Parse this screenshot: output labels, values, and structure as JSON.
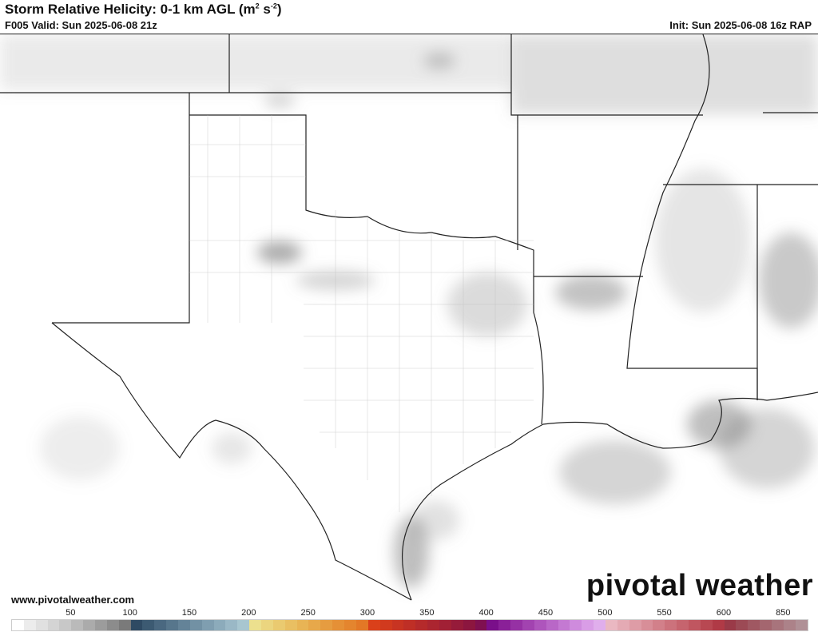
{
  "header": {
    "title": "Storm Relative Helicity: 0-1 km AGL (m",
    "title_sup1": "2",
    "title_mid": " s",
    "title_sup2": "-2",
    "title_end": ")",
    "valid": "F005 Valid: Sun 2025-06-08 21z",
    "init": "Init: Sun 2025-06-08 16z RAP"
  },
  "footer": {
    "url": "www.pivotalweather.com",
    "logo": "pivotal weather"
  },
  "colorbar": {
    "ticks": [
      {
        "label": "50",
        "index": 5
      },
      {
        "label": "100",
        "index": 10
      },
      {
        "label": "150",
        "index": 15
      },
      {
        "label": "200",
        "index": 20
      },
      {
        "label": "250",
        "index": 25
      },
      {
        "label": "300",
        "index": 30
      },
      {
        "label": "350",
        "index": 35
      },
      {
        "label": "400",
        "index": 40
      },
      {
        "label": "450",
        "index": 45
      },
      {
        "label": "500",
        "index": 50
      },
      {
        "label": "550",
        "index": 55
      },
      {
        "label": "600",
        "index": 60
      },
      {
        "label": "850",
        "index": 65
      }
    ],
    "colors": [
      "#ffffff",
      "#ececec",
      "#e0e0e0",
      "#d4d4d4",
      "#c8c8c8",
      "#bababa",
      "#ababab",
      "#9c9c9c",
      "#8c8c8c",
      "#7a7a7a",
      "#2f4a63",
      "#3c5a72",
      "#4a6880",
      "#57768c",
      "#648398",
      "#7291a4",
      "#7f9eb0",
      "#8cabbb",
      "#9ab8c6",
      "#a8c6d0",
      "#ece08e",
      "#ebd57f",
      "#eaca70",
      "#e9bf62",
      "#e8b455",
      "#e7a84a",
      "#e69c40",
      "#e59036",
      "#e4852e",
      "#e37826",
      "#da401a",
      "#d13a1e",
      "#c83422",
      "#bf2f26",
      "#b52a2b",
      "#ab2530",
      "#a12035",
      "#961b3a",
      "#8c163f",
      "#7f1050",
      "#7a0f8a",
      "#8a2098",
      "#9631a4",
      "#a243b0",
      "#ae55bc",
      "#b967c7",
      "#c479d2",
      "#cf8bdd",
      "#d99de6",
      "#e0aeec",
      "#eab8c2",
      "#e4aab4",
      "#de9ca6",
      "#d88e98",
      "#d2808a",
      "#cc727c",
      "#c6646e",
      "#c05660",
      "#b84852",
      "#b03a46",
      "#9a3a48",
      "#9c4a55",
      "#a05862",
      "#a4666f",
      "#a8747c",
      "#ac8289",
      "#b09096"
    ]
  }
}
